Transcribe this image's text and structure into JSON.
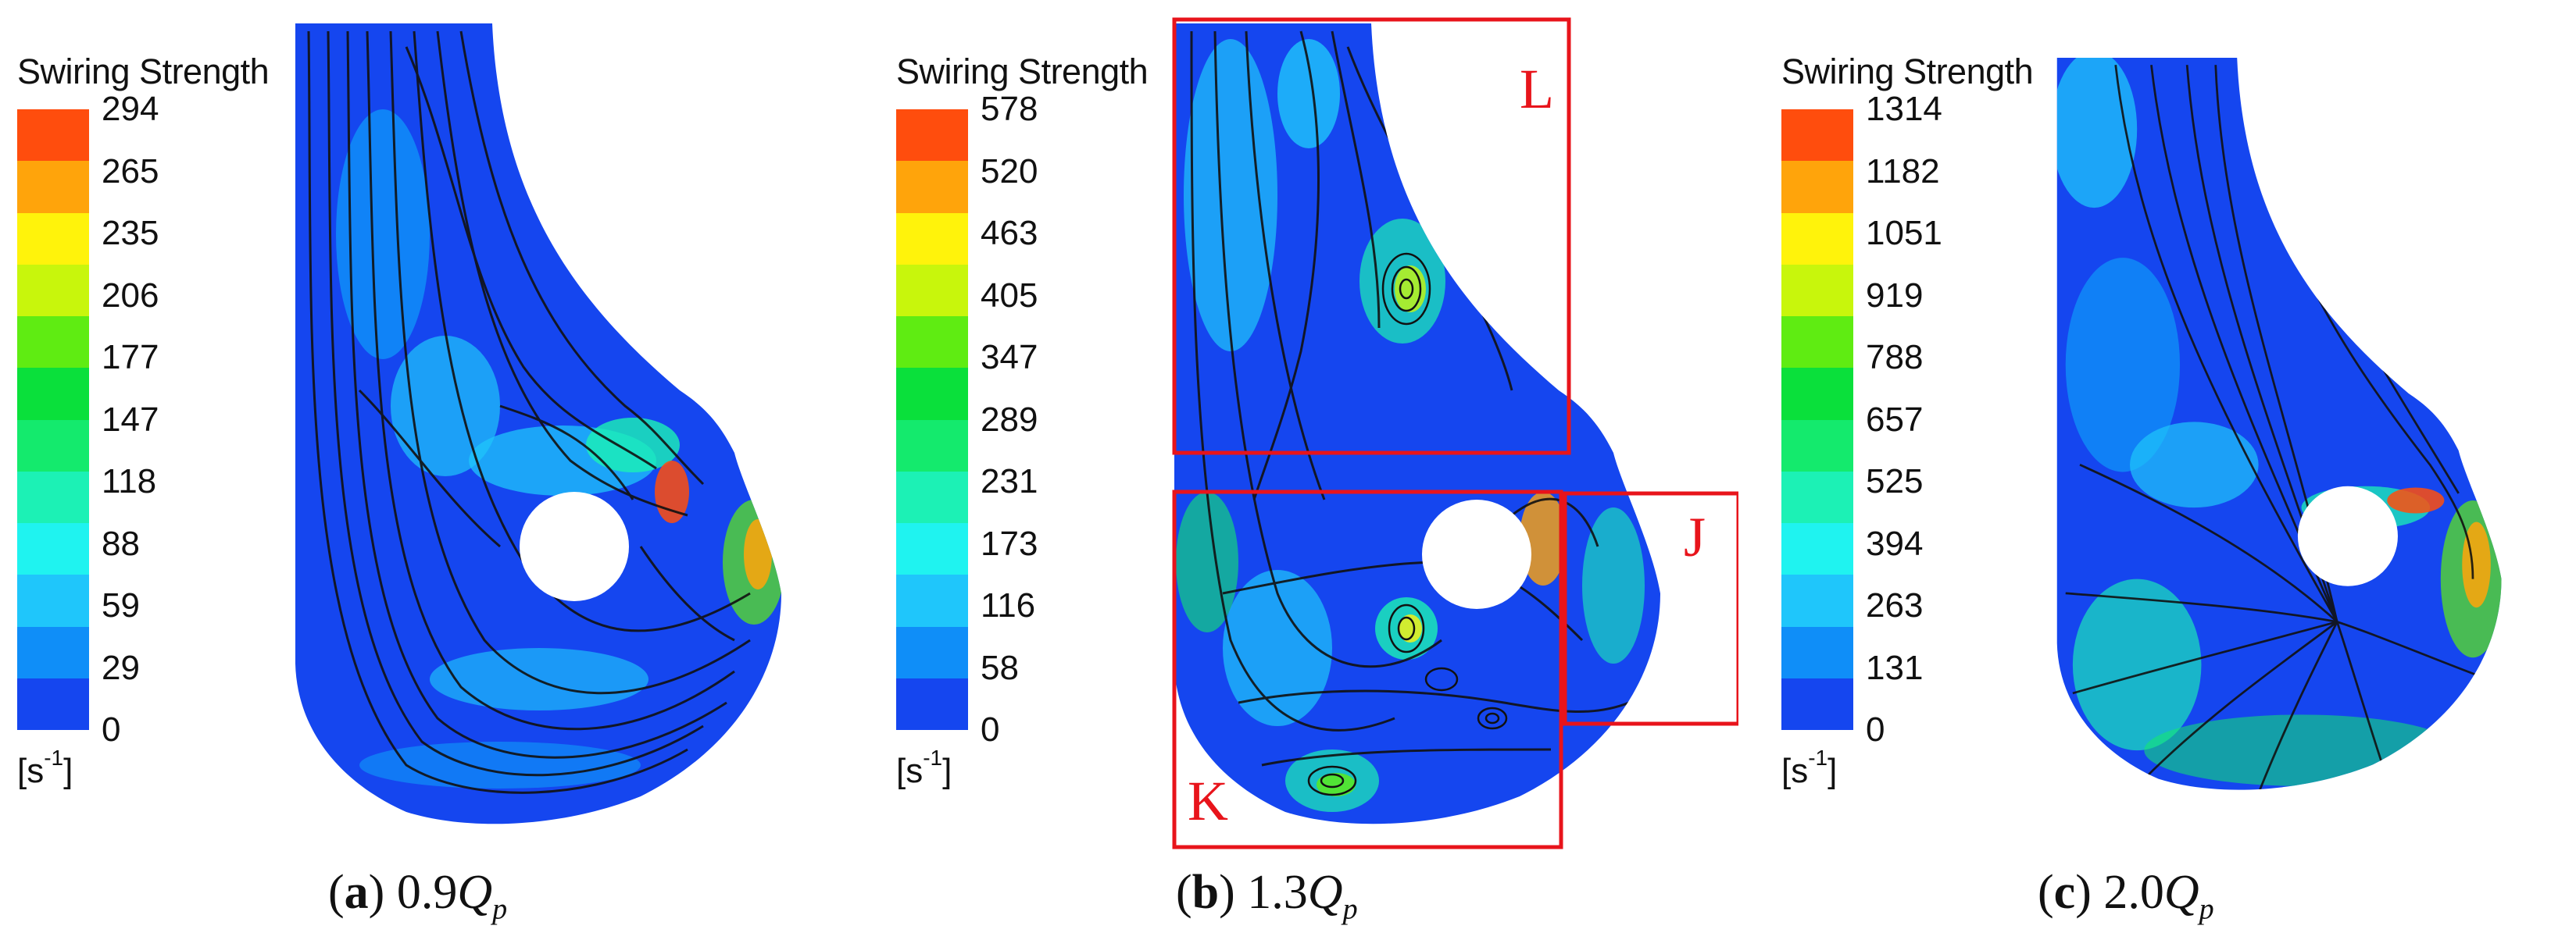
{
  "colors": {
    "bands": [
      "#1546ef",
      "#0f8ef8",
      "#1fc6fb",
      "#1ff3f0",
      "#1cf1b5",
      "#14ea6d",
      "#0ae03b",
      "#5fec12",
      "#c8f60c",
      "#fff30b",
      "#ffa40b",
      "#ff4d0d"
    ],
    "outline": "#e8141b"
  },
  "panels": [
    {
      "colorbar": {
        "title": "Swiring Strength",
        "ticks": [
          "294",
          "265",
          "235",
          "206",
          "177",
          "147",
          "118",
          "88",
          "59",
          "29",
          "0"
        ],
        "unit_base": "[s",
        "unit_exp": "-1",
        "unit_end": "]"
      },
      "caption": {
        "letter": "a",
        "value": "0.9",
        "symbol": "Q",
        "subscript": "p"
      }
    },
    {
      "colorbar": {
        "title": "Swiring Strength",
        "ticks": [
          "578",
          "520",
          "463",
          "405",
          "347",
          "289",
          "231",
          "173",
          "116",
          "58",
          "0"
        ],
        "unit_base": "[s",
        "unit_exp": "-1",
        "unit_end": "]"
      },
      "caption": {
        "letter": "b",
        "value": "1.3",
        "symbol": "Q",
        "subscript": "p"
      },
      "zones": [
        "L",
        "K",
        "J"
      ]
    },
    {
      "colorbar": {
        "title": "Swiring Strength",
        "ticks": [
          "1314",
          "1182",
          "1051",
          "919",
          "788",
          "657",
          "525",
          "394",
          "263",
          "131",
          "0"
        ],
        "unit_base": "[s",
        "unit_exp": "-1",
        "unit_end": "]"
      },
      "caption": {
        "letter": "c",
        "value": "2.0",
        "symbol": "Q",
        "subscript": "p"
      }
    }
  ]
}
